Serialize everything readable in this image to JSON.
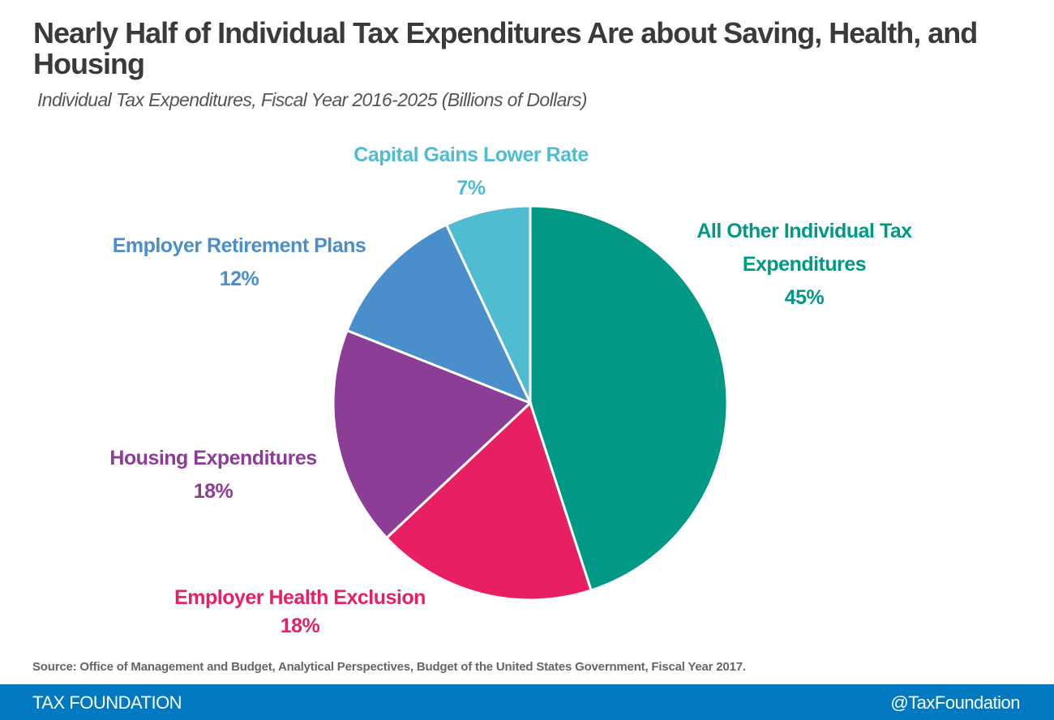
{
  "title": "Nearly Half of Individual Tax Expenditures Are about Saving, Health, and Housing",
  "subtitle": "Individual Tax Expenditures, Fiscal Year 2016-2025 (Billions of Dollars)",
  "source": "Source: Office of Management and Budget, Analytical Perspectives, Budget of the United States Government, Fiscal Year 2017.",
  "footer": {
    "brand": "TAX FOUNDATION",
    "handle": "@TaxFoundation"
  },
  "chart_data": {
    "type": "pie",
    "title": "Nearly Half of Individual Tax Expenditures Are about Saving, Health, and Housing",
    "start": "top, clockwise",
    "slices": [
      {
        "label": "All Other Individual Tax Expenditures",
        "value": 45,
        "pct": "45%",
        "color": "#009985"
      },
      {
        "label": "Employer Health Exclusion",
        "value": 18,
        "pct": "18%",
        "color": "#e91f63"
      },
      {
        "label": "Housing Expenditures",
        "value": 18,
        "pct": "18%",
        "color": "#8c3d96"
      },
      {
        "label": "Employer Retirement Plans",
        "value": 12,
        "pct": "12%",
        "color": "#4a8fcc"
      },
      {
        "label": "Capital Gains Lower Rate",
        "value": 7,
        "pct": "7%",
        "color": "#4fbcd1"
      }
    ]
  }
}
